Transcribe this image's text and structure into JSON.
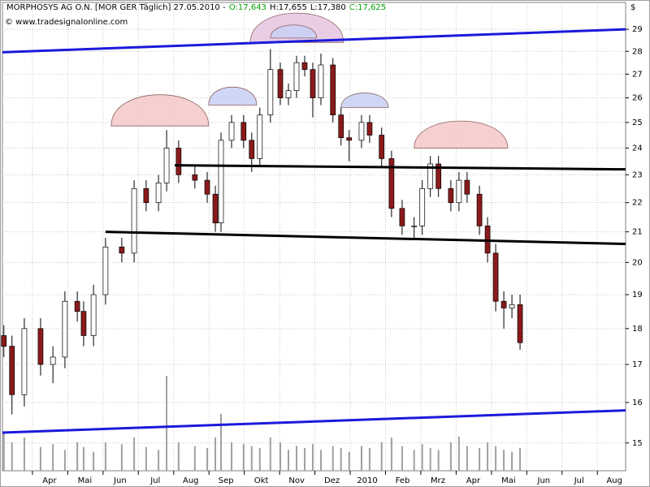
{
  "chart_data": {
    "type": "candlestick",
    "title": "MORPHOSYS AG O.N. [MOR GER  Täglich] 27.05.2010 -",
    "quote": [
      {
        "label": "O:17,643",
        "color": "#00a000"
      },
      {
        "label": "H:17,655",
        "color": "#000000"
      },
      {
        "label": "L:17,380",
        "color": "#000000"
      },
      {
        "label": "C:17,625",
        "color": "#00a000"
      }
    ],
    "source": "© www.tradesignalonline.com",
    "currency": "$",
    "log_scale": true,
    "grid": true,
    "up_color": "#ffffff",
    "down_color": "#8b1a1a",
    "volume_color": "#a0a0a0",
    "xlim": [
      -0.85,
      16.8
    ],
    "xticks": [
      {
        "value": 0,
        "label": "Apr"
      },
      {
        "value": 1,
        "label": "Mai"
      },
      {
        "value": 2,
        "label": "Jun"
      },
      {
        "value": 3,
        "label": "Jul"
      },
      {
        "value": 4,
        "label": "Aug"
      },
      {
        "value": 5,
        "label": "Sep"
      },
      {
        "value": 6,
        "label": "Okt"
      },
      {
        "value": 7,
        "label": "Nov"
      },
      {
        "value": 8,
        "label": "Dez"
      },
      {
        "value": 9,
        "label": "2010"
      },
      {
        "value": 10,
        "label": "Feb"
      },
      {
        "value": 11,
        "label": "Mrz"
      },
      {
        "value": 12,
        "label": "Apr"
      },
      {
        "value": 13,
        "label": "Mai"
      },
      {
        "value": 14,
        "label": "Jun"
      },
      {
        "value": 15,
        "label": "Jul"
      },
      {
        "value": 16,
        "label": "Aug"
      }
    ],
    "ylim": [
      14.35,
      30.27
    ],
    "yticks": [
      15,
      16,
      17,
      18,
      19,
      20,
      21,
      22,
      23,
      24,
      25,
      26,
      27,
      28,
      29
    ],
    "volume_lim": [
      0,
      100
    ],
    "x": [
      -0.81,
      -0.58,
      -0.23,
      0.23,
      0.58,
      0.92,
      1.27,
      1.45,
      1.73,
      2.07,
      2.53,
      2.88,
      3.22,
      3.57,
      3.8,
      4.14,
      4.6,
      4.95,
      5.18,
      5.34,
      5.64,
      5.98,
      6.21,
      6.44,
      6.74,
      7.02,
      7.25,
      7.48,
      7.71,
      7.94,
      8.17,
      8.51,
      8.74,
      8.97,
      9.32,
      9.55,
      9.89,
      10.17,
      10.47,
      10.81,
      11.04,
      11.27,
      11.5,
      11.85,
      12.08,
      12.31,
      12.66,
      12.89,
      13.12,
      13.35,
      13.58,
      13.81
    ],
    "open": [
      17.8,
      17.5,
      16.2,
      18.0,
      17.0,
      17.2,
      18.8,
      18.5,
      17.8,
      19.0,
      20.5,
      20.3,
      22.5,
      22.0,
      22.7,
      24.0,
      23.0,
      22.8,
      22.3,
      21.3,
      24.3,
      25.0,
      24.3,
      23.6,
      25.3,
      27.2,
      26.0,
      26.3,
      27.5,
      27.2,
      26.0,
      27.4,
      25.3,
      24.4,
      24.3,
      25.0,
      24.5,
      23.6,
      21.8,
      21.2,
      21.2,
      22.5,
      23.4,
      22.5,
      22.0,
      22.8,
      22.3,
      21.2,
      20.3,
      18.8,
      18.6,
      18.7
    ],
    "high": [
      18.1,
      17.8,
      18.3,
      18.3,
      17.5,
      19.1,
      19.1,
      18.8,
      19.3,
      20.8,
      20.8,
      22.8,
      22.8,
      23.0,
      24.7,
      24.3,
      23.3,
      23.1,
      22.6,
      24.6,
      25.3,
      25.3,
      24.6,
      25.6,
      28.1,
      27.5,
      26.6,
      27.8,
      27.8,
      27.5,
      27.9,
      27.7,
      25.6,
      24.7,
      25.3,
      25.3,
      24.8,
      23.9,
      22.1,
      21.5,
      22.8,
      23.7,
      23.7,
      22.8,
      23.1,
      23.1,
      22.6,
      21.5,
      20.6,
      19.1,
      19.0,
      19.0
    ],
    "low": [
      17.2,
      15.7,
      15.9,
      16.7,
      16.5,
      16.9,
      18.2,
      17.5,
      17.5,
      18.7,
      20.0,
      20.0,
      21.7,
      21.7,
      22.4,
      22.7,
      22.5,
      22.0,
      21.0,
      21.0,
      24.0,
      24.0,
      23.1,
      23.3,
      25.0,
      25.7,
      25.7,
      26.0,
      26.9,
      25.2,
      25.7,
      25.0,
      24.1,
      23.5,
      24.0,
      24.2,
      23.3,
      21.5,
      20.9,
      20.8,
      20.9,
      22.2,
      22.2,
      21.7,
      21.7,
      22.0,
      20.9,
      20.0,
      18.5,
      18.0,
      18.3,
      17.4
    ],
    "close": [
      17.5,
      16.2,
      18.0,
      17.0,
      17.2,
      18.8,
      18.5,
      17.8,
      19.0,
      20.5,
      20.3,
      22.5,
      22.0,
      22.7,
      24.0,
      23.0,
      22.8,
      22.3,
      21.3,
      24.3,
      25.0,
      24.3,
      23.6,
      25.3,
      27.2,
      26.0,
      26.3,
      27.5,
      27.2,
      26.0,
      27.4,
      25.3,
      24.4,
      24.3,
      25.0,
      24.5,
      23.6,
      21.8,
      21.2,
      21.2,
      22.5,
      23.4,
      22.5,
      22.0,
      22.8,
      22.3,
      21.2,
      20.3,
      18.8,
      18.6,
      18.7,
      17.6
    ],
    "volume": [
      40,
      30,
      35,
      25,
      28,
      22,
      30,
      25,
      20,
      30,
      28,
      35,
      25,
      22,
      100,
      30,
      26,
      24,
      35,
      60,
      30,
      28,
      26,
      24,
      35,
      30,
      22,
      26,
      24,
      28,
      22,
      26,
      24,
      20,
      26,
      24,
      30,
      35,
      26,
      22,
      28,
      24,
      22,
      30,
      36,
      26,
      24,
      30,
      26,
      22,
      20,
      24
    ],
    "lines": [
      {
        "color": "#1a1adc",
        "x": [
          -0.85,
          16.8
        ],
        "y": [
          27.96,
          29.0
        ]
      },
      {
        "color": "#1a1adc",
        "x": [
          -0.85,
          16.8
        ],
        "y": [
          15.25,
          15.8
        ]
      },
      {
        "color": "#000000",
        "x": [
          4.03,
          16.8
        ],
        "y": [
          23.35,
          23.2
        ]
      },
      {
        "color": "#000000",
        "x": [
          2.07,
          16.8
        ],
        "y": [
          21.0,
          20.6
        ]
      }
    ],
    "arcs": [
      {
        "color": "#f4c8c8",
        "x": [
          2.23,
          4.99
        ],
        "y": [
          24.86,
          25.7
        ]
      },
      {
        "color": "#c8d0f4",
        "x": [
          4.99,
          6.35
        ],
        "y": [
          25.7,
          26.2
        ]
      },
      {
        "color": "#e4c4e0",
        "x": [
          6.17,
          8.81
        ],
        "y": [
          28.4,
          29.3
        ]
      },
      {
        "color": "#c8d0f4",
        "x": [
          6.74,
          8.05
        ],
        "y": [
          28.6,
          29.0
        ]
      },
      {
        "color": "#c8d0f4",
        "x": [
          8.74,
          10.08
        ],
        "y": [
          25.6,
          26.0
        ]
      },
      {
        "color": "#f4c8c8",
        "x": [
          10.81,
          13.46
        ],
        "y": [
          24.0,
          24.7
        ]
      }
    ]
  }
}
